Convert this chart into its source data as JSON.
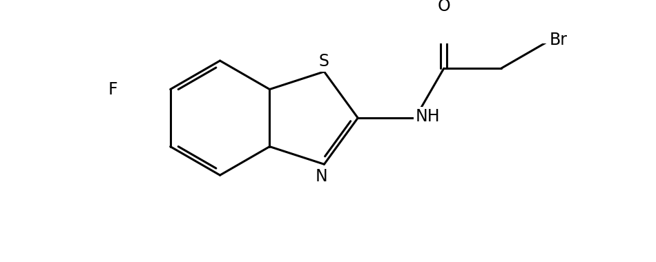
{
  "background_color": "#ffffff",
  "bond_color": "#000000",
  "line_width": 2.2,
  "font_size": 17,
  "figsize": [
    9.5,
    3.8
  ],
  "dpi": 100,
  "xlim": [
    -0.5,
    9.0
  ],
  "ylim": [
    -0.3,
    3.5
  ]
}
